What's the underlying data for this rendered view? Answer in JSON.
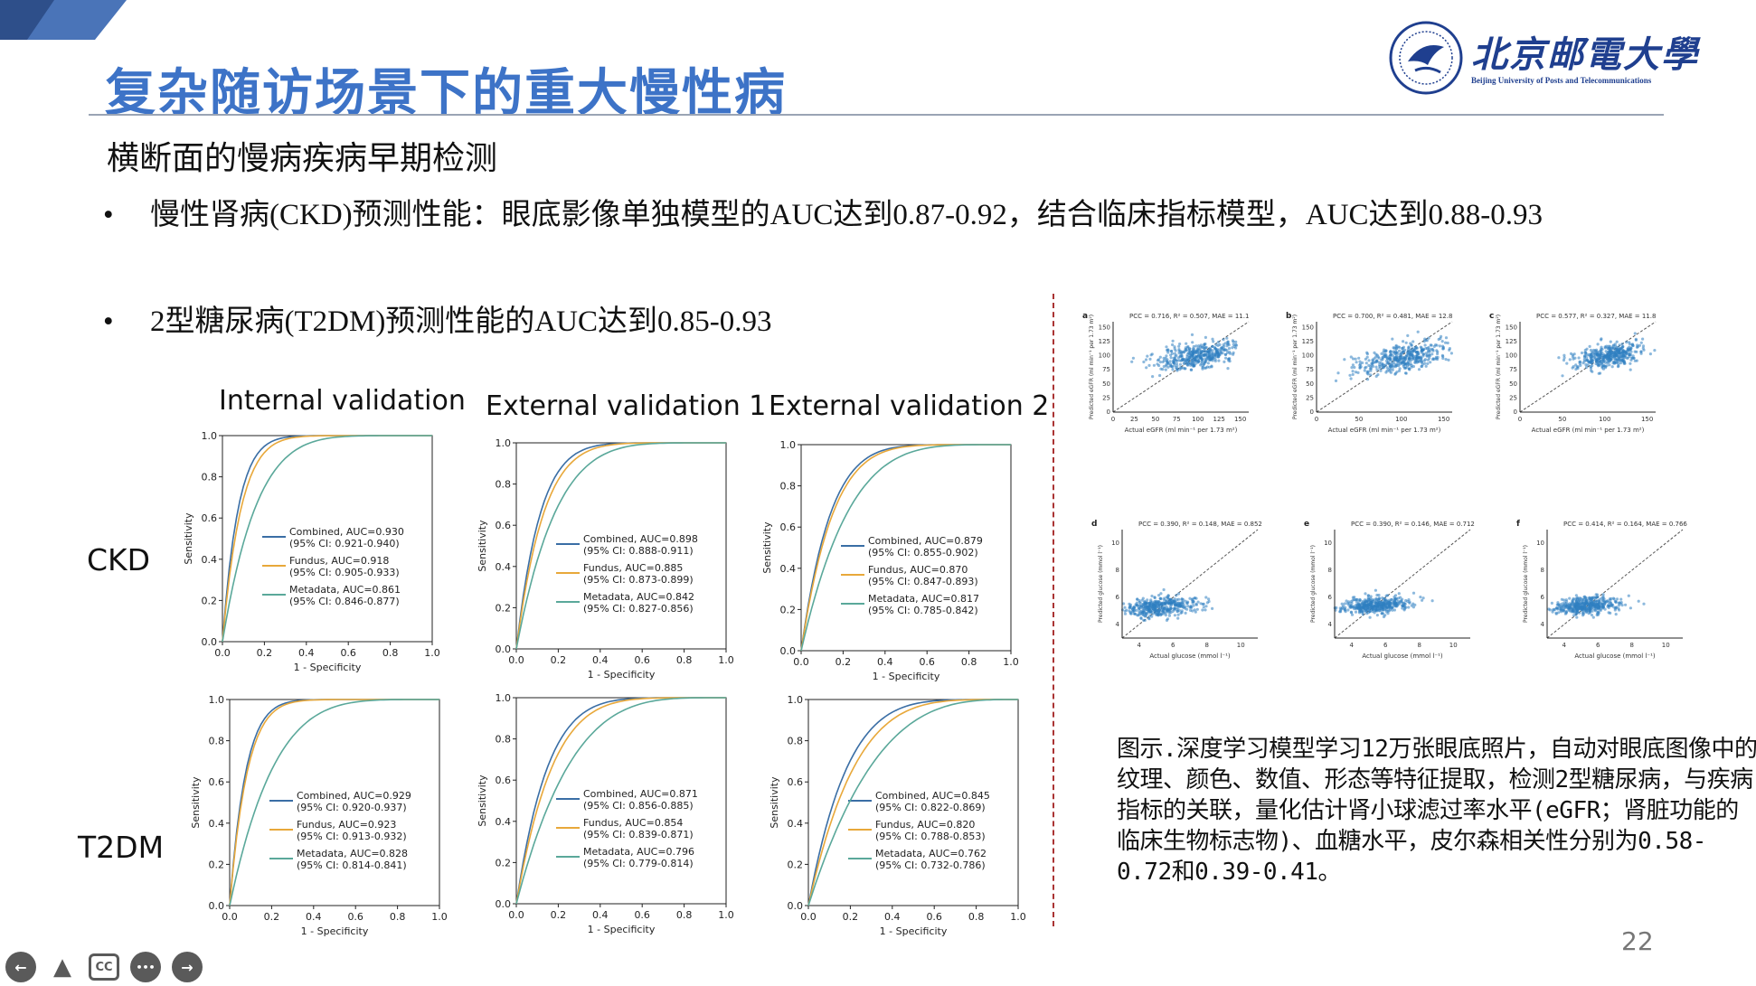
{
  "slide": {
    "title": "复杂随访场景下的重大慢性病",
    "subtitle": "横断面的慢病疾病早期检测",
    "bullets": [
      "慢性肾病(CKD)预测性能：眼底影像单独模型的AUC达到0.87-0.92，结合临床指标模型，AUC达到0.88-0.93",
      "2型糖尿病(T2DM)预测性能的AUC达到0.85-0.93"
    ],
    "bullet_symbol": "•",
    "page_number": "22",
    "caption": "图示.深度学习模型学习12万张眼底照片，自动对眼底图像中的纹理、颜色、数值、形态等特征提取，检测2型糖尿病，与疾病指标的关联，量化估计肾小球滤过率水平(eGFR；肾脏功能的临床生物标志物)、血糖水平，皮尔森相关性分别为0.58-0.72和0.39-0.41。"
  },
  "logo": {
    "name_cn": "北京邮電大學",
    "name_en": "Beijing University of Posts and Telecommunications",
    "color": "#1f3f8f"
  },
  "colors": {
    "title": "#3d73c7",
    "combined": "#3a6ea5",
    "fundus": "#e8a83a",
    "metadata": "#5aa89a",
    "scatter": "#2f7fc1"
  },
  "toolbar": [
    {
      "icon": "back-arrow-icon",
      "glyph": "←"
    },
    {
      "icon": "pointer-icon",
      "glyph": "▲"
    },
    {
      "icon": "captions-icon",
      "glyph": "CC"
    },
    {
      "icon": "more-icon",
      "glyph": "•••"
    },
    {
      "icon": "forward-arrow-icon",
      "glyph": "→"
    }
  ],
  "chart_data": [
    {
      "type": "line",
      "title": "Internal validation",
      "row": "CKD",
      "xlabel": "1 - Specificity",
      "ylabel": "Sensitivity",
      "xlim": [
        0,
        1
      ],
      "ylim": [
        0,
        1
      ],
      "ticks": [
        "0.0",
        "0.2",
        "0.4",
        "0.6",
        "0.8",
        "1.0"
      ],
      "series": [
        {
          "name": "Combined, AUC=0.930",
          "ci": "(95% CI: 0.921-0.940)",
          "auc": 0.93
        },
        {
          "name": "Fundus, AUC=0.918",
          "ci": "(95% CI: 0.905-0.933)",
          "auc": 0.918
        },
        {
          "name": "Metadata, AUC=0.861",
          "ci": "(95% CI: 0.846-0.877)",
          "auc": 0.861
        }
      ]
    },
    {
      "type": "line",
      "title": "External validation 1",
      "row": "CKD",
      "xlabel": "1 - Specificity",
      "ylabel": "Sensitivity",
      "xlim": [
        0,
        1
      ],
      "ylim": [
        0,
        1
      ],
      "ticks": [
        "0.0",
        "0.2",
        "0.4",
        "0.6",
        "0.8",
        "1.0"
      ],
      "series": [
        {
          "name": "Combined, AUC=0.898",
          "ci": "(95% CI: 0.888-0.911)",
          "auc": 0.898
        },
        {
          "name": "Fundus, AUC=0.885",
          "ci": "(95% CI: 0.873-0.899)",
          "auc": 0.885
        },
        {
          "name": "Metadata, AUC=0.842",
          "ci": "(95% CI: 0.827-0.856)",
          "auc": 0.842
        }
      ]
    },
    {
      "type": "line",
      "title": "External validation 2",
      "row": "CKD",
      "xlabel": "1 - Specificity",
      "ylabel": "Sensitivity",
      "xlim": [
        0,
        1
      ],
      "ylim": [
        0,
        1
      ],
      "ticks": [
        "0.0",
        "0.2",
        "0.4",
        "0.6",
        "0.8",
        "1.0"
      ],
      "series": [
        {
          "name": "Combined, AUC=0.879",
          "ci": "(95% CI: 0.855-0.902)",
          "auc": 0.879
        },
        {
          "name": "Fundus, AUC=0.870",
          "ci": "(95% CI: 0.847-0.893)",
          "auc": 0.87
        },
        {
          "name": "Metadata, AUC=0.817",
          "ci": "(95% CI: 0.785-0.842)",
          "auc": 0.817
        }
      ]
    },
    {
      "type": "line",
      "title": "",
      "row": "T2DM",
      "xlabel": "1 - Specificity",
      "ylabel": "Sensitivity",
      "xlim": [
        0,
        1
      ],
      "ylim": [
        0,
        1
      ],
      "ticks": [
        "0.0",
        "0.2",
        "0.4",
        "0.6",
        "0.8",
        "1.0"
      ],
      "series": [
        {
          "name": "Combined, AUC=0.929",
          "ci": "(95% CI: 0.920-0.937)",
          "auc": 0.929
        },
        {
          "name": "Fundus, AUC=0.923",
          "ci": "(95% CI: 0.913-0.932)",
          "auc": 0.923
        },
        {
          "name": "Metadata, AUC=0.828",
          "ci": "(95% CI: 0.814-0.841)",
          "auc": 0.828
        }
      ]
    },
    {
      "type": "line",
      "title": "",
      "row": "T2DM",
      "xlabel": "1 - Specificity",
      "ylabel": "Sensitivity",
      "xlim": [
        0,
        1
      ],
      "ylim": [
        0,
        1
      ],
      "ticks": [
        "0.0",
        "0.2",
        "0.4",
        "0.6",
        "0.8",
        "1.0"
      ],
      "series": [
        {
          "name": "Combined, AUC=0.871",
          "ci": "(95% CI: 0.856-0.885)",
          "auc": 0.871
        },
        {
          "name": "Fundus, AUC=0.854",
          "ci": "(95% CI: 0.839-0.871)",
          "auc": 0.854
        },
        {
          "name": "Metadata, AUC=0.796",
          "ci": "(95% CI: 0.779-0.814)",
          "auc": 0.796
        }
      ]
    },
    {
      "type": "line",
      "title": "",
      "row": "T2DM",
      "xlabel": "1 - Specificity",
      "ylabel": "Sensitivity",
      "xlim": [
        0,
        1
      ],
      "ylim": [
        0,
        1
      ],
      "ticks": [
        "0.0",
        "0.2",
        "0.4",
        "0.6",
        "0.8",
        "1.0"
      ],
      "series": [
        {
          "name": "Combined, AUC=0.845",
          "ci": "(95% CI: 0.822-0.869)",
          "auc": 0.845
        },
        {
          "name": "Fundus, AUC=0.820",
          "ci": "(95% CI: 0.788-0.853)",
          "auc": 0.82
        },
        {
          "name": "Metadata, AUC=0.762",
          "ci": "(95% CI: 0.732-0.786)",
          "auc": 0.762
        }
      ]
    },
    {
      "type": "scatter",
      "panel": "a",
      "stats": "PCC = 0.716, R² = 0.507, MAE = 11.1",
      "xlabel": "Actual eGFR (ml min⁻¹ per 1.73 m²)",
      "ylabel": "Predicted eGFR (ml min⁻¹ per 1.73 m²)",
      "xticks": [
        "0",
        "25",
        "50",
        "75",
        "100",
        "125",
        "150"
      ],
      "yticks": [
        "0",
        "25",
        "50",
        "75",
        "100",
        "125",
        "150"
      ],
      "center": [
        100,
        100
      ],
      "spread": [
        25,
        12
      ]
    },
    {
      "type": "scatter",
      "panel": "b",
      "stats": "PCC = 0.700, R² = 0.481, MAE = 12.8",
      "xlabel": "Actual eGFR (ml min⁻¹ per 1.73 m²)",
      "ylabel": "Predicted eGFR (ml min⁻¹ per 1.73 m²)",
      "xticks": [
        "0",
        "50",
        "100",
        "150"
      ],
      "yticks": [
        "0",
        "25",
        "50",
        "75",
        "100",
        "125",
        "150"
      ],
      "center": [
        100,
        95
      ],
      "spread": [
        28,
        12
      ]
    },
    {
      "type": "scatter",
      "panel": "c",
      "stats": "PCC = 0.577, R² = 0.327, MAE = 11.8",
      "xlabel": "Actual eGFR (ml min⁻¹ per 1.73 m²)",
      "ylabel": "Predicted eGFR (ml min⁻¹ per 1.73 m²)",
      "xticks": [
        "0",
        "50",
        "100",
        "150"
      ],
      "yticks": [
        "0",
        "25",
        "50",
        "75",
        "100",
        "125",
        "150"
      ],
      "center": [
        105,
        100
      ],
      "spread": [
        20,
        10
      ]
    },
    {
      "type": "scatter",
      "panel": "d",
      "stats": "PCC = 0.390, R² = 0.148, MAE = 0.852",
      "xlabel": "Actual glucose (mmol l⁻¹)",
      "ylabel": "Predicted glucose (mmol l⁻¹)",
      "xticks": [
        "4",
        "6",
        "8",
        "10"
      ],
      "yticks": [
        "4",
        "6",
        "8",
        "10"
      ],
      "center": [
        5.2,
        5.3
      ],
      "spread": [
        1.2,
        0.35
      ]
    },
    {
      "type": "scatter",
      "panel": "e",
      "stats": "PCC = 0.390, R² = 0.146, MAE = 0.712",
      "xlabel": "Actual glucose (mmol l⁻¹)",
      "ylabel": "Predicted glucose (mmol l⁻¹)",
      "xticks": [
        "4",
        "6",
        "8",
        "10"
      ],
      "yticks": [
        "4",
        "6",
        "8",
        "10"
      ],
      "center": [
        5.4,
        5.4
      ],
      "spread": [
        1.0,
        0.3
      ]
    },
    {
      "type": "scatter",
      "panel": "f",
      "stats": "PCC = 0.414, R² = 0.164, MAE = 0.766",
      "xlabel": "Actual glucose (mmol l⁻¹)",
      "ylabel": "Predicted glucose (mmol l⁻¹)",
      "xticks": [
        "4",
        "6",
        "8",
        "10"
      ],
      "yticks": [
        "4",
        "6",
        "8",
        "10"
      ],
      "center": [
        5.4,
        5.4
      ],
      "spread": [
        1.0,
        0.3
      ]
    }
  ]
}
